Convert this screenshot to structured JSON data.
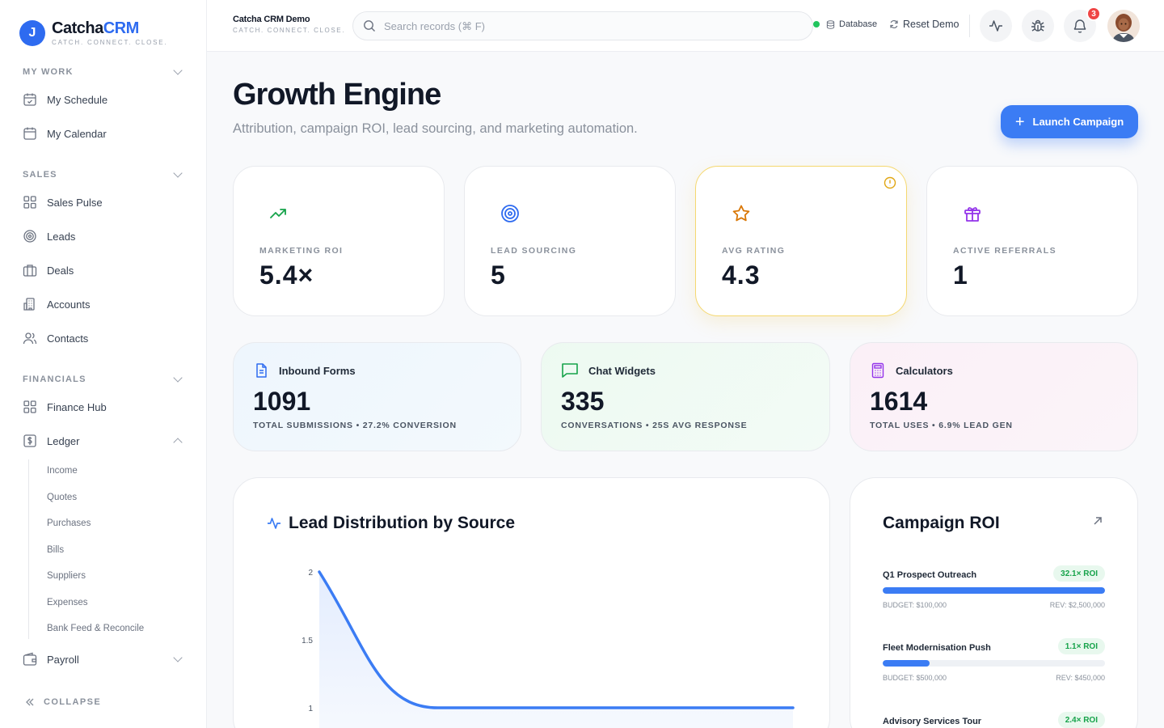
{
  "brand": {
    "logo_letter": "J",
    "name_a": "Catcha",
    "name_b": "CRM",
    "tagline": "CATCH. CONNECT. CLOSE."
  },
  "sidebar": {
    "sections": {
      "my_work": "MY WORK",
      "sales": "SALES",
      "financials": "FINANCIALS"
    },
    "my_work": [
      {
        "label": "My Schedule",
        "icon": "calendar-check-icon"
      },
      {
        "label": "My Calendar",
        "icon": "calendar-icon"
      }
    ],
    "sales": [
      {
        "label": "Sales Pulse",
        "icon": "grid-icon"
      },
      {
        "label": "Leads",
        "icon": "target-icon"
      },
      {
        "label": "Deals",
        "icon": "briefcase-icon"
      },
      {
        "label": "Accounts",
        "icon": "building-icon"
      },
      {
        "label": "Contacts",
        "icon": "users-icon"
      }
    ],
    "financials": [
      {
        "label": "Finance Hub",
        "icon": "grid-icon"
      },
      {
        "label": "Ledger",
        "icon": "dollar-icon"
      }
    ],
    "ledger_sub": [
      "Income",
      "Quotes",
      "Purchases",
      "Bills",
      "Suppliers",
      "Expenses",
      "Bank Feed & Reconcile"
    ],
    "payroll": "Payroll",
    "collapse": "COLLAPSE"
  },
  "topbar": {
    "workspace_name": "Catcha CRM Demo",
    "workspace_tag": "CATCH. CONNECT. CLOSE.",
    "search_placeholder": "Search records (⌘ F)",
    "database_label": "Database",
    "reset_label": "Reset Demo",
    "notification_count": "3",
    "status_color": "#22c55e"
  },
  "page": {
    "title": "Growth Engine",
    "subtitle": "Attribution, campaign ROI, lead sourcing, and marketing automation.",
    "launch_label": "Launch Campaign",
    "accent": "#3b7cf4"
  },
  "stats": [
    {
      "label": "MARKETING ROI",
      "value": "5.4×",
      "icon": "trending-up-icon",
      "color": "#16a34a"
    },
    {
      "label": "LEAD SOURCING",
      "value": "5",
      "icon": "target-icon",
      "color": "#2e6bf0"
    },
    {
      "label": "AVG RATING",
      "value": "4.3",
      "icon": "star-icon",
      "color": "#d97706"
    },
    {
      "label": "ACTIVE REFERRALS",
      "value": "1",
      "icon": "gift-icon",
      "color": "#9333ea"
    }
  ],
  "widgets": [
    {
      "title": "Inbound Forms",
      "value": "1091",
      "meta": "TOTAL SUBMISSIONS • 27.2% CONVERSION",
      "icon": "document-icon"
    },
    {
      "title": "Chat Widgets",
      "value": "335",
      "meta": "CONVERSATIONS • 25S AVG RESPONSE",
      "icon": "chat-icon"
    },
    {
      "title": "Calculators",
      "value": "1614",
      "meta": "TOTAL USES • 6.9% LEAD GEN",
      "icon": "calculator-icon"
    }
  ],
  "chart_panel": {
    "title": "Lead Distribution by Source"
  },
  "chart_data": {
    "type": "area",
    "title": "Lead Distribution by Source",
    "y_ticks": [
      "2",
      "1.5",
      "1"
    ],
    "ylim": [
      1,
      2
    ],
    "x": [
      0,
      1,
      2,
      3,
      4
    ],
    "values": [
      2,
      1,
      1,
      1,
      1
    ],
    "grid": false
  },
  "roi": {
    "title": "Campaign ROI",
    "campaigns": [
      {
        "name": "Q1 Prospect Outreach",
        "roi": "32.1× ROI",
        "budget": "BUDGET: $100,000",
        "rev": "REV: $2,500,000",
        "progress": 1.0
      },
      {
        "name": "Fleet Modernisation Push",
        "roi": "1.1× ROI",
        "budget": "BUDGET: $500,000",
        "rev": "REV: $450,000",
        "progress": 0.21
      },
      {
        "name": "Advisory Services Tour",
        "roi": "2.4× ROI"
      }
    ]
  }
}
